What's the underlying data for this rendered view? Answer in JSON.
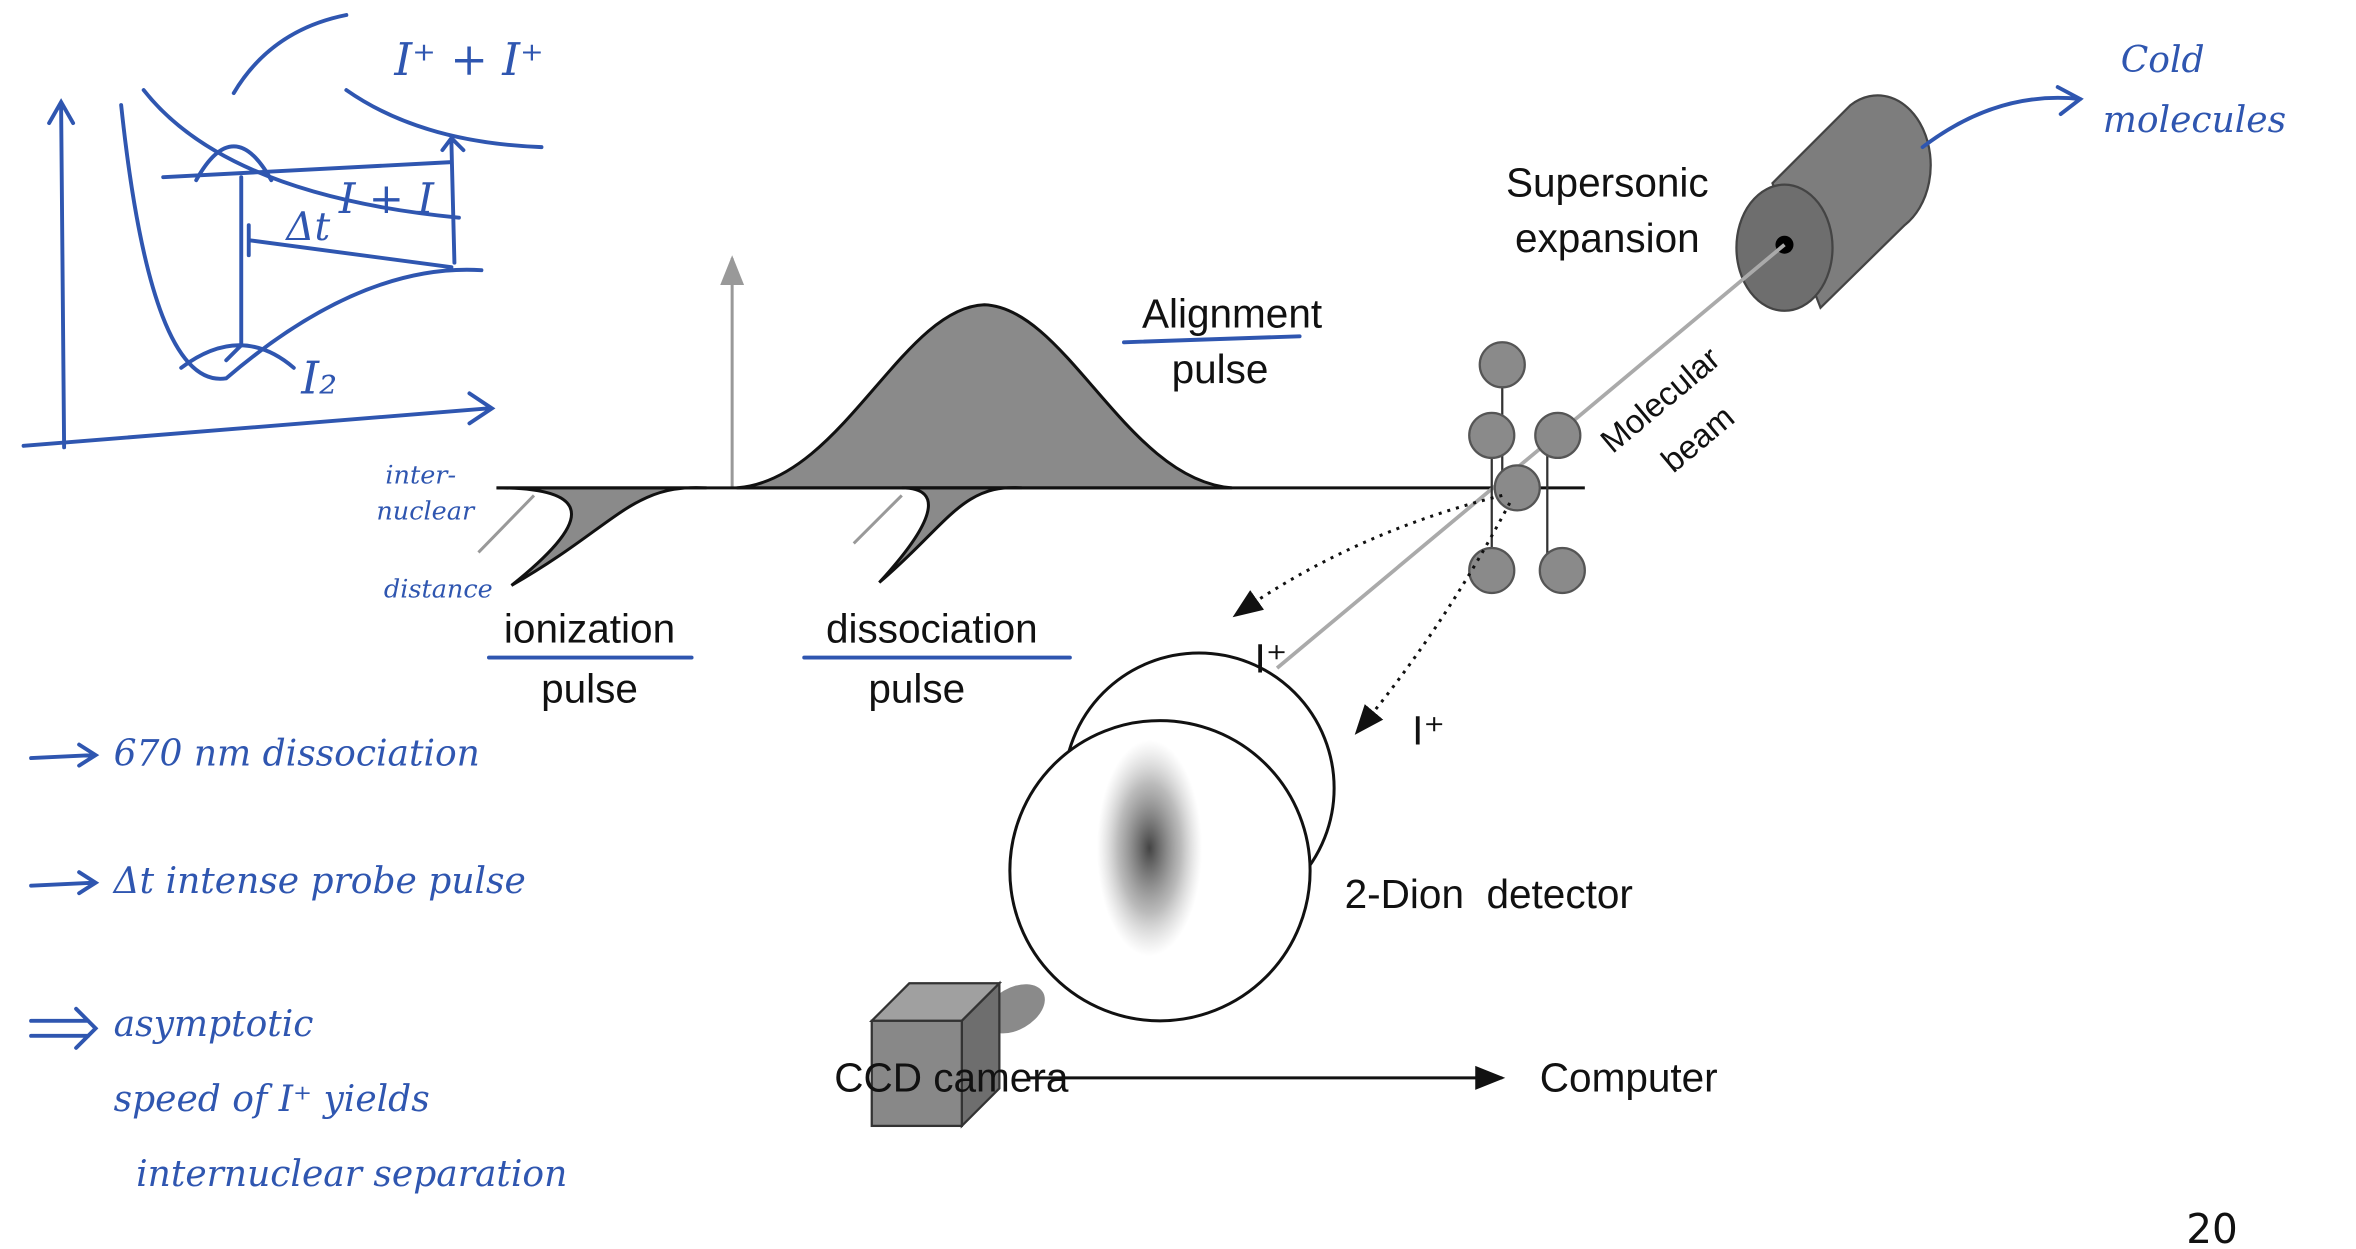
{
  "diagram": {
    "supersonic": [
      "Supersonic",
      "expansion"
    ],
    "alignment": [
      "Alignment",
      "pulse"
    ],
    "beam": [
      "Molecular",
      "beam"
    ],
    "ionization": [
      "ionization",
      "pulse"
    ],
    "dissociation": [
      "dissociation",
      "pulse"
    ],
    "ion_1": "I⁺",
    "ion_2": "I⁺",
    "detector": "2-Dion  detector",
    "camera": "CCD camera",
    "computer": "Computer",
    "page_number": "20"
  },
  "notes": {
    "cold": [
      "Cold",
      "molecules"
    ],
    "upper_state": "I⁺ + I⁺",
    "middle_state": "I + I",
    "delay": "Δt",
    "ground_state": "I₂",
    "x_axis": [
      "inter-",
      "nuclear",
      "distance"
    ],
    "points": [
      "670 nm dissociation",
      "Δt intense probe pulse",
      "asymptotic",
      "speed of I⁺ yields",
      "internuclear separation"
    ]
  }
}
